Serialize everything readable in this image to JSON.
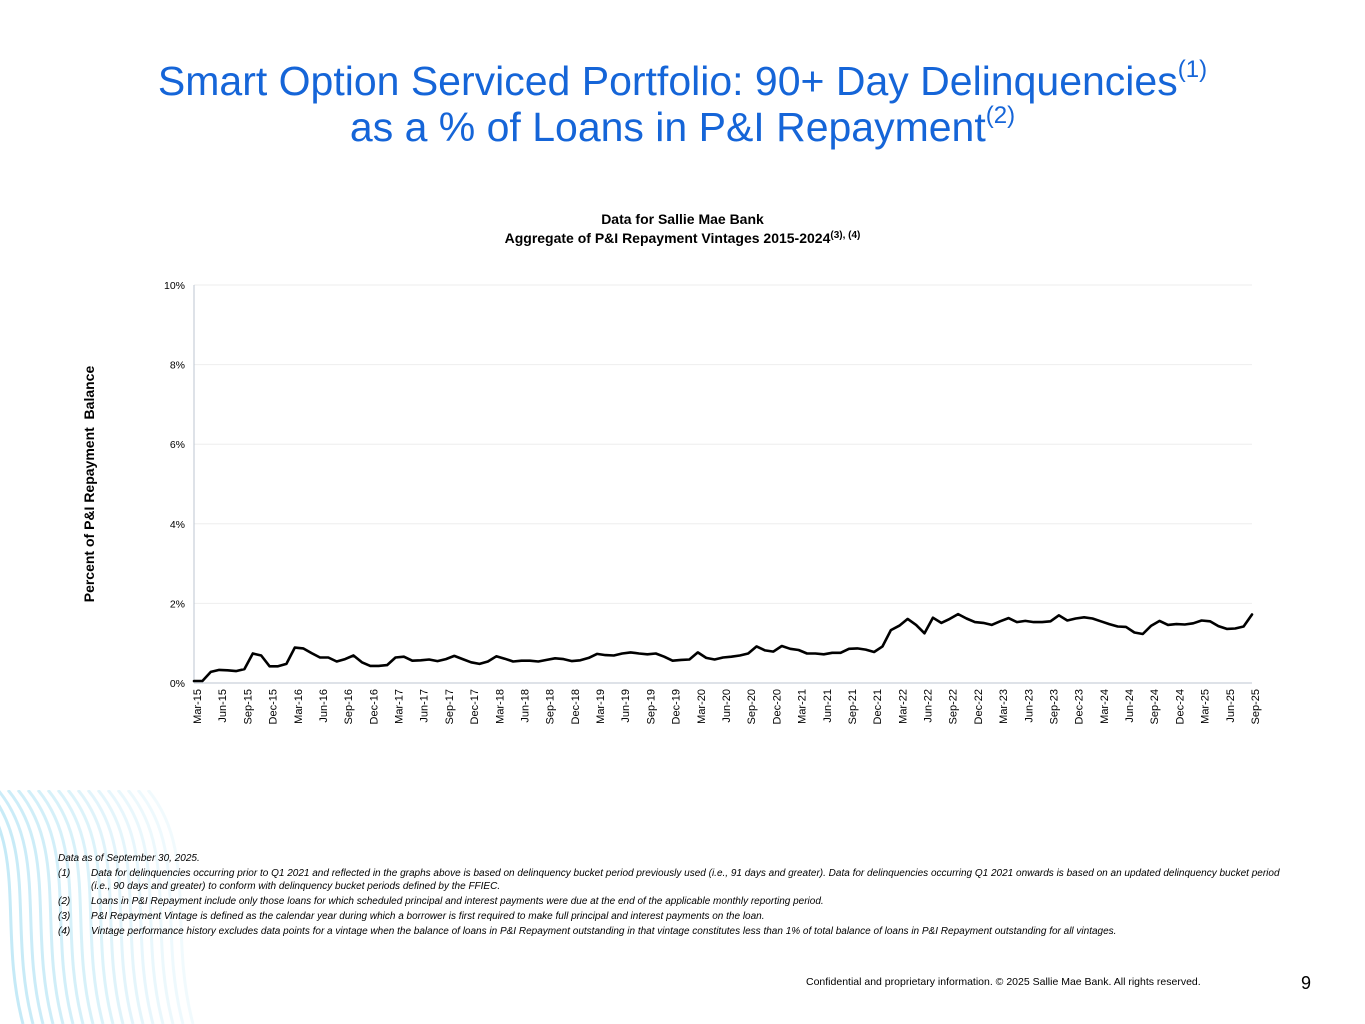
{
  "page": {
    "title_line1": "Smart Option Serviced Portfolio: 90+ Day Delinquencies",
    "title_line1_sup": "(1)",
    "title_line2": "as a % of Loans in P&I Repayment",
    "title_line2_sup": "(2)",
    "footnotes": [
      {
        "mark": "",
        "text": "Data as of September 30, 2025."
      },
      {
        "mark": "(1)",
        "text": "Data for delinquencies occurring prior to Q1 2021 and reflected in the graphs above is based on delinquency bucket period previously used (i.e., 91 days and greater).  Data for delinquencies occurring Q1 2021 onwards is based on an updated delinquency bucket period (i.e., 90 days and greater) to conform with delinquency bucket periods defined by the FFIEC."
      },
      {
        "mark": "(2)",
        "text": "Loans in P&I Repayment include only those loans for which scheduled principal and interest payments were due at the end of the applicable monthly reporting period."
      },
      {
        "mark": "(3)",
        "text": "P&I Repayment Vintage is defined as the calendar year during which a borrower is first required to make full principal and interest payments on the loan."
      },
      {
        "mark": "(4)",
        "text": "Vintage performance history excludes data points for a vintage when the balance of loans in P&I Repayment outstanding in that vintage constitutes less than 1% of total balance of loans in P&I Repayment outstanding for all vintages."
      }
    ],
    "confidential": "Confidential and proprietary information. © 2025 Sallie Mae Bank. All rights reserved.",
    "page_number": "9",
    "colors": {
      "title": "#1565d8",
      "line": "#000000",
      "grid": "#eeeeee",
      "axis": "#bcc6d2",
      "deco": "#bfe8f6"
    }
  },
  "chart_data": {
    "type": "line",
    "title_line1": "Data for Sallie Mae Bank",
    "title_line2": "Aggregate of P&I Repayment Vintages 2015-2024",
    "title_sup": "(3), (4)",
    "xlabel": "",
    "ylabel": "Percent of P&I Repayment  Balance",
    "ylim": [
      0,
      10
    ],
    "y_ticks": [
      "0%",
      "2%",
      "4%",
      "6%",
      "8%",
      "10%"
    ],
    "x_tick_labels": [
      "Mar-15",
      "Jun-15",
      "Sep-15",
      "Dec-15",
      "Mar-16",
      "Jun-16",
      "Sep-16",
      "Dec-16",
      "Mar-17",
      "Jun-17",
      "Sep-17",
      "Dec-17",
      "Mar-18",
      "Jun-18",
      "Sep-18",
      "Dec-18",
      "Mar-19",
      "Jun-19",
      "Sep-19",
      "Dec-19",
      "Mar-20",
      "Jun-20",
      "Sep-20",
      "Dec-20",
      "Mar-21",
      "Jun-21",
      "Sep-21",
      "Dec-21",
      "Mar-22",
      "Jun-22",
      "Sep-22",
      "Dec-22",
      "Mar-23",
      "Jun-23",
      "Sep-23",
      "Dec-23",
      "Mar-24",
      "Jun-24",
      "Sep-24",
      "Dec-24",
      "Mar-25",
      "Jun-25",
      "Sep-25"
    ],
    "grid": true,
    "series": [
      {
        "name": "Aggregate of P&I Repayment Vintages 2015-2024",
        "values": [
          0.05,
          0.05,
          0.28,
          0.33,
          0.32,
          0.3,
          0.35,
          0.74,
          0.69,
          0.42,
          0.42,
          0.48,
          0.89,
          0.87,
          0.75,
          0.64,
          0.64,
          0.54,
          0.6,
          0.69,
          0.52,
          0.43,
          0.43,
          0.45,
          0.64,
          0.66,
          0.56,
          0.57,
          0.59,
          0.55,
          0.6,
          0.68,
          0.6,
          0.52,
          0.48,
          0.54,
          0.67,
          0.61,
          0.54,
          0.56,
          0.56,
          0.54,
          0.58,
          0.62,
          0.6,
          0.55,
          0.57,
          0.63,
          0.73,
          0.7,
          0.69,
          0.74,
          0.77,
          0.74,
          0.72,
          0.74,
          0.66,
          0.56,
          0.58,
          0.59,
          0.77,
          0.63,
          0.59,
          0.64,
          0.66,
          0.69,
          0.74,
          0.92,
          0.82,
          0.79,
          0.93,
          0.86,
          0.83,
          0.74,
          0.74,
          0.72,
          0.76,
          0.76,
          0.86,
          0.87,
          0.84,
          0.78,
          0.92,
          1.33,
          1.44,
          1.61,
          1.46,
          1.25,
          1.64,
          1.51,
          1.61,
          1.73,
          1.62,
          1.53,
          1.51,
          1.46,
          1.55,
          1.63,
          1.53,
          1.56,
          1.53,
          1.53,
          1.55,
          1.7,
          1.57,
          1.62,
          1.65,
          1.62,
          1.55,
          1.48,
          1.42,
          1.41,
          1.27,
          1.23,
          1.44,
          1.56,
          1.46,
          1.48,
          1.47,
          1.5,
          1.57,
          1.55,
          1.43,
          1.36,
          1.37,
          1.42,
          1.72
        ]
      }
    ]
  }
}
